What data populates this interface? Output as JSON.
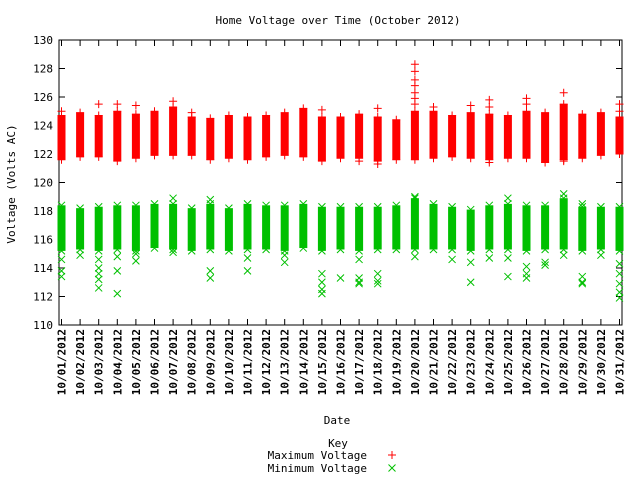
{
  "chart_data": {
    "type": "scatter",
    "title": "Home Voltage over Time (October 2012)",
    "xlabel": "Date",
    "ylabel": "Voltage (Volts AC)",
    "ylim": [
      110,
      130
    ],
    "yticks": [
      110,
      112,
      114,
      116,
      118,
      120,
      122,
      124,
      126,
      128,
      130
    ],
    "grid": false,
    "legend_placement": "bottom-center",
    "legend_title": "Key",
    "categories": [
      "10/01/2012",
      "10/02/2012",
      "10/03/2012",
      "10/04/2012",
      "10/05/2012",
      "10/06/2012",
      "10/07/2012",
      "10/08/2012",
      "10/09/2012",
      "10/10/2012",
      "10/11/2012",
      "10/12/2012",
      "10/13/2012",
      "10/14/2012",
      "10/15/2012",
      "10/16/2012",
      "10/17/2012",
      "10/18/2012",
      "10/19/2012",
      "10/20/2012",
      "10/21/2012",
      "10/22/2012",
      "10/23/2012",
      "10/24/2012",
      "10/25/2012",
      "10/26/2012",
      "10/27/2012",
      "10/28/2012",
      "10/29/2012",
      "10/30/2012",
      "10/31/2012"
    ],
    "series": [
      {
        "name": "Maximum Voltage",
        "marker": "plus",
        "color": "#ff0000",
        "band_low": [
          121.6,
          121.8,
          121.8,
          121.5,
          121.7,
          121.9,
          121.9,
          121.9,
          121.6,
          121.7,
          121.6,
          121.8,
          121.9,
          121.8,
          121.5,
          121.7,
          121.7,
          121.5,
          121.6,
          121.6,
          121.7,
          121.8,
          121.7,
          121.6,
          121.7,
          121.7,
          121.4,
          121.6,
          121.7,
          121.9,
          122.0
        ],
        "band_high": [
          124.7,
          124.9,
          124.7,
          125.0,
          124.8,
          125.0,
          125.3,
          124.6,
          124.5,
          124.7,
          124.6,
          124.7,
          124.9,
          125.2,
          124.6,
          124.6,
          124.8,
          124.6,
          124.4,
          125.0,
          125.0,
          124.7,
          124.9,
          124.8,
          124.7,
          125.0,
          124.9,
          125.5,
          124.8,
          124.9,
          124.6
        ],
        "outliers": [
          {
            "x": "10/01/2012",
            "y": 125.0
          },
          {
            "x": "10/03/2012",
            "y": 125.5
          },
          {
            "x": "10/04/2012",
            "y": 125.5
          },
          {
            "x": "10/05/2012",
            "y": 125.4
          },
          {
            "x": "10/07/2012",
            "y": 125.7
          },
          {
            "x": "10/08/2012",
            "y": 124.9
          },
          {
            "x": "10/15/2012",
            "y": 125.1
          },
          {
            "x": "10/17/2012",
            "y": 121.5
          },
          {
            "x": "10/18/2012",
            "y": 125.2
          },
          {
            "x": "10/18/2012",
            "y": 121.3
          },
          {
            "x": "10/20/2012",
            "y": 128.3
          },
          {
            "x": "10/20/2012",
            "y": 127.8
          },
          {
            "x": "10/20/2012",
            "y": 127.2
          },
          {
            "x": "10/20/2012",
            "y": 126.8
          },
          {
            "x": "10/20/2012",
            "y": 126.3
          },
          {
            "x": "10/20/2012",
            "y": 125.9
          },
          {
            "x": "10/20/2012",
            "y": 125.5
          },
          {
            "x": "10/21/2012",
            "y": 125.3
          },
          {
            "x": "10/23/2012",
            "y": 125.4
          },
          {
            "x": "10/24/2012",
            "y": 125.8
          },
          {
            "x": "10/24/2012",
            "y": 125.3
          },
          {
            "x": "10/24/2012",
            "y": 121.4
          },
          {
            "x": "10/26/2012",
            "y": 125.9
          },
          {
            "x": "10/26/2012",
            "y": 125.5
          },
          {
            "x": "10/28/2012",
            "y": 126.3
          },
          {
            "x": "10/28/2012",
            "y": 121.5
          },
          {
            "x": "10/31/2012",
            "y": 125.5
          },
          {
            "x": "10/31/2012",
            "y": 125.0
          }
        ]
      },
      {
        "name": "Minimum Voltage",
        "marker": "cross",
        "color": "#00c000",
        "band_low": [
          115.2,
          115.3,
          115.2,
          115.3,
          115.2,
          115.4,
          115.3,
          115.2,
          115.3,
          115.2,
          115.3,
          115.3,
          115.2,
          115.4,
          115.2,
          115.3,
          115.2,
          115.3,
          115.3,
          115.3,
          115.3,
          115.3,
          115.2,
          115.3,
          115.3,
          115.2,
          115.3,
          115.3,
          115.2,
          115.3,
          115.2
        ],
        "band_high": [
          118.4,
          118.2,
          118.3,
          118.4,
          118.4,
          118.5,
          118.5,
          118.2,
          118.5,
          118.2,
          118.5,
          118.4,
          118.4,
          118.5,
          118.3,
          118.3,
          118.3,
          118.3,
          118.4,
          118.9,
          118.5,
          118.3,
          118.1,
          118.4,
          118.5,
          118.4,
          118.4,
          118.9,
          118.3,
          118.3,
          118.3
        ],
        "outliers": [
          {
            "x": "10/01/2012",
            "y": 113.8
          },
          {
            "x": "10/01/2012",
            "y": 113.4
          },
          {
            "x": "10/01/2012",
            "y": 114.6
          },
          {
            "x": "10/02/2012",
            "y": 114.9
          },
          {
            "x": "10/03/2012",
            "y": 114.6
          },
          {
            "x": "10/03/2012",
            "y": 114.0
          },
          {
            "x": "10/03/2012",
            "y": 113.6
          },
          {
            "x": "10/03/2012",
            "y": 113.2
          },
          {
            "x": "10/03/2012",
            "y": 112.6
          },
          {
            "x": "10/04/2012",
            "y": 114.8
          },
          {
            "x": "10/04/2012",
            "y": 113.8
          },
          {
            "x": "10/04/2012",
            "y": 112.2
          },
          {
            "x": "10/05/2012",
            "y": 115.0
          },
          {
            "x": "10/05/2012",
            "y": 114.5
          },
          {
            "x": "10/07/2012",
            "y": 118.9
          },
          {
            "x": "10/07/2012",
            "y": 115.1
          },
          {
            "x": "10/09/2012",
            "y": 118.8
          },
          {
            "x": "10/09/2012",
            "y": 113.8
          },
          {
            "x": "10/09/2012",
            "y": 113.3
          },
          {
            "x": "10/11/2012",
            "y": 114.7
          },
          {
            "x": "10/11/2012",
            "y": 113.8
          },
          {
            "x": "10/13/2012",
            "y": 114.9
          },
          {
            "x": "10/13/2012",
            "y": 114.4
          },
          {
            "x": "10/15/2012",
            "y": 113.6
          },
          {
            "x": "10/15/2012",
            "y": 113.0
          },
          {
            "x": "10/15/2012",
            "y": 112.5
          },
          {
            "x": "10/15/2012",
            "y": 112.2
          },
          {
            "x": "10/16/2012",
            "y": 113.3
          },
          {
            "x": "10/17/2012",
            "y": 114.6
          },
          {
            "x": "10/17/2012",
            "y": 113.3
          },
          {
            "x": "10/17/2012",
            "y": 113.0
          },
          {
            "x": "10/17/2012",
            "y": 112.9
          },
          {
            "x": "10/18/2012",
            "y": 113.6
          },
          {
            "x": "10/18/2012",
            "y": 113.1
          },
          {
            "x": "10/18/2012",
            "y": 112.9
          },
          {
            "x": "10/20/2012",
            "y": 119.0
          },
          {
            "x": "10/20/2012",
            "y": 114.8
          },
          {
            "x": "10/22/2012",
            "y": 114.6
          },
          {
            "x": "10/23/2012",
            "y": 114.4
          },
          {
            "x": "10/23/2012",
            "y": 113.0
          },
          {
            "x": "10/24/2012",
            "y": 114.7
          },
          {
            "x": "10/25/2012",
            "y": 118.9
          },
          {
            "x": "10/25/2012",
            "y": 114.7
          },
          {
            "x": "10/25/2012",
            "y": 113.4
          },
          {
            "x": "10/26/2012",
            "y": 114.1
          },
          {
            "x": "10/26/2012",
            "y": 113.6
          },
          {
            "x": "10/26/2012",
            "y": 113.3
          },
          {
            "x": "10/27/2012",
            "y": 114.4
          },
          {
            "x": "10/27/2012",
            "y": 114.2
          },
          {
            "x": "10/28/2012",
            "y": 119.2
          },
          {
            "x": "10/28/2012",
            "y": 114.9
          },
          {
            "x": "10/29/2012",
            "y": 118.5
          },
          {
            "x": "10/29/2012",
            "y": 113.4
          },
          {
            "x": "10/29/2012",
            "y": 113.0
          },
          {
            "x": "10/29/2012",
            "y": 112.9
          },
          {
            "x": "10/30/2012",
            "y": 114.9
          },
          {
            "x": "10/31/2012",
            "y": 114.3
          },
          {
            "x": "10/31/2012",
            "y": 113.6
          },
          {
            "x": "10/31/2012",
            "y": 112.9
          },
          {
            "x": "10/31/2012",
            "y": 112.3
          },
          {
            "x": "10/31/2012",
            "y": 111.9
          }
        ]
      }
    ]
  }
}
